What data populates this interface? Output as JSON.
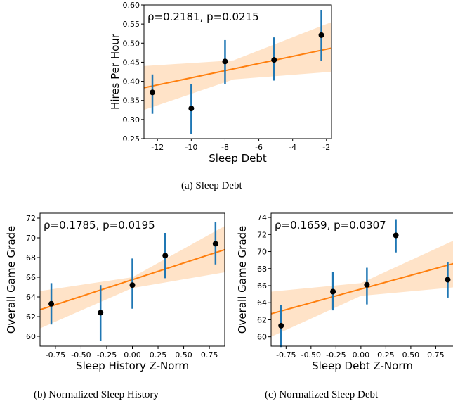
{
  "colors": {
    "fit_line": "#ff7f0e",
    "band": "#ffe3c8",
    "error_bar": "#1f77b4",
    "point": "#000000"
  },
  "captions": [
    "(a)  Sleep Debt",
    "(b)  Normalized Sleep History",
    "(c)  Normalized Sleep Debt"
  ],
  "chart_data": [
    {
      "type": "scatter",
      "annotation": "ρ=0.2181, p=0.0215",
      "xlabel": "Sleep Debt",
      "ylabel": "Hires Per Hour",
      "xlim": [
        -12.8,
        -1.7
      ],
      "ylim": [
        0.25,
        0.6
      ],
      "xticks": [
        -12,
        -10,
        -8,
        -6,
        -4,
        -2
      ],
      "xtick_labels": [
        "-12",
        "-10",
        "-8",
        "-6",
        "-4",
        "-2"
      ],
      "yticks": [
        0.25,
        0.3,
        0.35,
        0.4,
        0.45,
        0.5,
        0.55,
        0.6
      ],
      "ytick_labels": [
        "0.25",
        "0.30",
        "0.35",
        "0.40",
        "0.45",
        "0.50",
        "0.55",
        "0.60"
      ],
      "points": [
        {
          "x": -12.3,
          "y": 0.371,
          "lo": 0.315,
          "hi": 0.418
        },
        {
          "x": -10.0,
          "y": 0.329,
          "lo": 0.262,
          "hi": 0.392
        },
        {
          "x": -8.0,
          "y": 0.452,
          "lo": 0.393,
          "hi": 0.508
        },
        {
          "x": -5.1,
          "y": 0.456,
          "lo": 0.402,
          "hi": 0.515
        },
        {
          "x": -2.3,
          "y": 0.521,
          "lo": 0.454,
          "hi": 0.587
        }
      ],
      "fit": {
        "x": [
          -12.8,
          -1.7
        ],
        "y": [
          0.383,
          0.487
        ]
      },
      "band": {
        "x": [
          -12.8,
          -7.5,
          -1.7
        ],
        "lo": [
          0.325,
          0.405,
          0.425
        ],
        "hi": [
          0.44,
          0.455,
          0.555
        ]
      }
    },
    {
      "type": "scatter",
      "annotation": "ρ=0.1785, p=0.0195",
      "xlabel": "Sleep History Z-Norm",
      "ylabel": "Overall Game Grade",
      "xlim": [
        -0.9,
        0.9
      ],
      "ylim": [
        59.0,
        72.5
      ],
      "xticks": [
        -0.75,
        -0.5,
        -0.25,
        0.0,
        0.25,
        0.5,
        0.75
      ],
      "xtick_labels": [
        "-0.75",
        "-0.50",
        "-0.25",
        "0.00",
        "0.25",
        "0.50",
        "0.75"
      ],
      "yticks": [
        60,
        62,
        64,
        66,
        68,
        70,
        72
      ],
      "ytick_labels": [
        "60",
        "62",
        "64",
        "66",
        "68",
        "70",
        "72"
      ],
      "points": [
        {
          "x": -0.79,
          "y": 63.3,
          "lo": 61.2,
          "hi": 65.4
        },
        {
          "x": -0.31,
          "y": 62.4,
          "lo": 59.5,
          "hi": 65.2
        },
        {
          "x": 0.0,
          "y": 65.2,
          "lo": 62.8,
          "hi": 67.9
        },
        {
          "x": 0.32,
          "y": 68.2,
          "lo": 65.9,
          "hi": 70.5
        },
        {
          "x": 0.81,
          "y": 69.4,
          "lo": 67.3,
          "hi": 71.6
        }
      ],
      "fit": {
        "x": [
          -0.9,
          0.9
        ],
        "y": [
          62.7,
          68.8
        ]
      },
      "band": {
        "x": [
          -0.9,
          0.0,
          0.9
        ],
        "lo": [
          60.8,
          64.9,
          66.5
        ],
        "hi": [
          64.6,
          66.0,
          71.2
        ]
      }
    },
    {
      "type": "scatter",
      "annotation": "ρ=0.1659, p=0.0307",
      "xlabel": "Sleep Debt Z-Norm",
      "ylabel": "Overall Game Grade",
      "xlim": [
        -0.9,
        0.93
      ],
      "ylim": [
        58.9,
        74.5
      ],
      "xticks": [
        -0.75,
        -0.5,
        -0.25,
        0.0,
        0.25,
        0.5,
        0.75
      ],
      "xtick_labels": [
        "-0.75",
        "-0.50",
        "-0.25",
        "0.00",
        "0.25",
        "0.50",
        "0.75"
      ],
      "yticks": [
        60,
        62,
        64,
        66,
        68,
        70,
        72,
        74
      ],
      "ytick_labels": [
        "60",
        "62",
        "64",
        "66",
        "68",
        "70",
        "72",
        "74"
      ],
      "points": [
        {
          "x": -0.8,
          "y": 61.3,
          "lo": 58.8,
          "hi": 63.7
        },
        {
          "x": -0.28,
          "y": 65.3,
          "lo": 63.1,
          "hi": 67.6
        },
        {
          "x": 0.06,
          "y": 66.1,
          "lo": 63.8,
          "hi": 68.1
        },
        {
          "x": 0.35,
          "y": 71.9,
          "lo": 69.9,
          "hi": 73.8
        },
        {
          "x": 0.87,
          "y": 66.7,
          "lo": 64.6,
          "hi": 68.8
        }
      ],
      "fit": {
        "x": [
          -0.9,
          0.93
        ],
        "y": [
          62.7,
          68.6
        ]
      },
      "band": {
        "x": [
          -0.9,
          0.0,
          0.93
        ],
        "lo": [
          60.0,
          64.8,
          65.8
        ],
        "hi": [
          65.3,
          66.3,
          71.3
        ]
      }
    }
  ]
}
